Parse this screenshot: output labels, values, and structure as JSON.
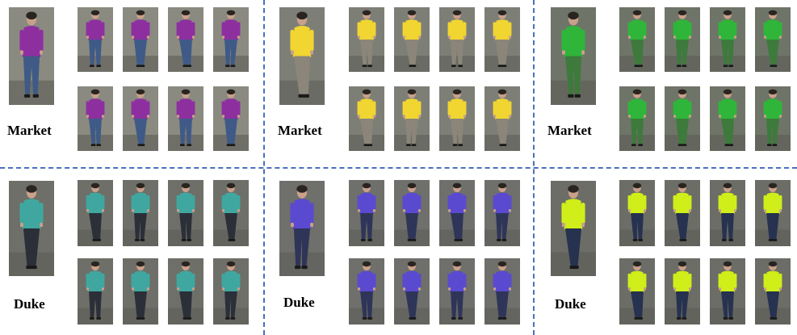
{
  "divider_color": "#4a6fbf",
  "columns": [
    {
      "top": {
        "dataset": "Market",
        "shirt": "#8e2fa0",
        "pants": "#3f5a86",
        "bg": "#8a8a80"
      },
      "bottom": {
        "dataset": "Duke",
        "shirt": "#3fa7a0",
        "pants": "#2b2f38",
        "bg": "#6e6f68"
      }
    },
    {
      "top": {
        "dataset": "Market",
        "shirt": "#f1d531",
        "pants": "#8b8679",
        "bg": "#7d7f77"
      },
      "bottom": {
        "dataset": "Duke",
        "shirt": "#5a4ad0",
        "pants": "#2f3558",
        "bg": "#6f6f6c"
      }
    },
    {
      "top": {
        "dataset": "Market",
        "shirt": "#2fb53a",
        "pants": "#3d7a3c",
        "bg": "#6f7468"
      },
      "bottom": {
        "dataset": "Duke",
        "shirt": "#cfee1a",
        "pants": "#26324f",
        "bg": "#6b6d66"
      }
    }
  ]
}
